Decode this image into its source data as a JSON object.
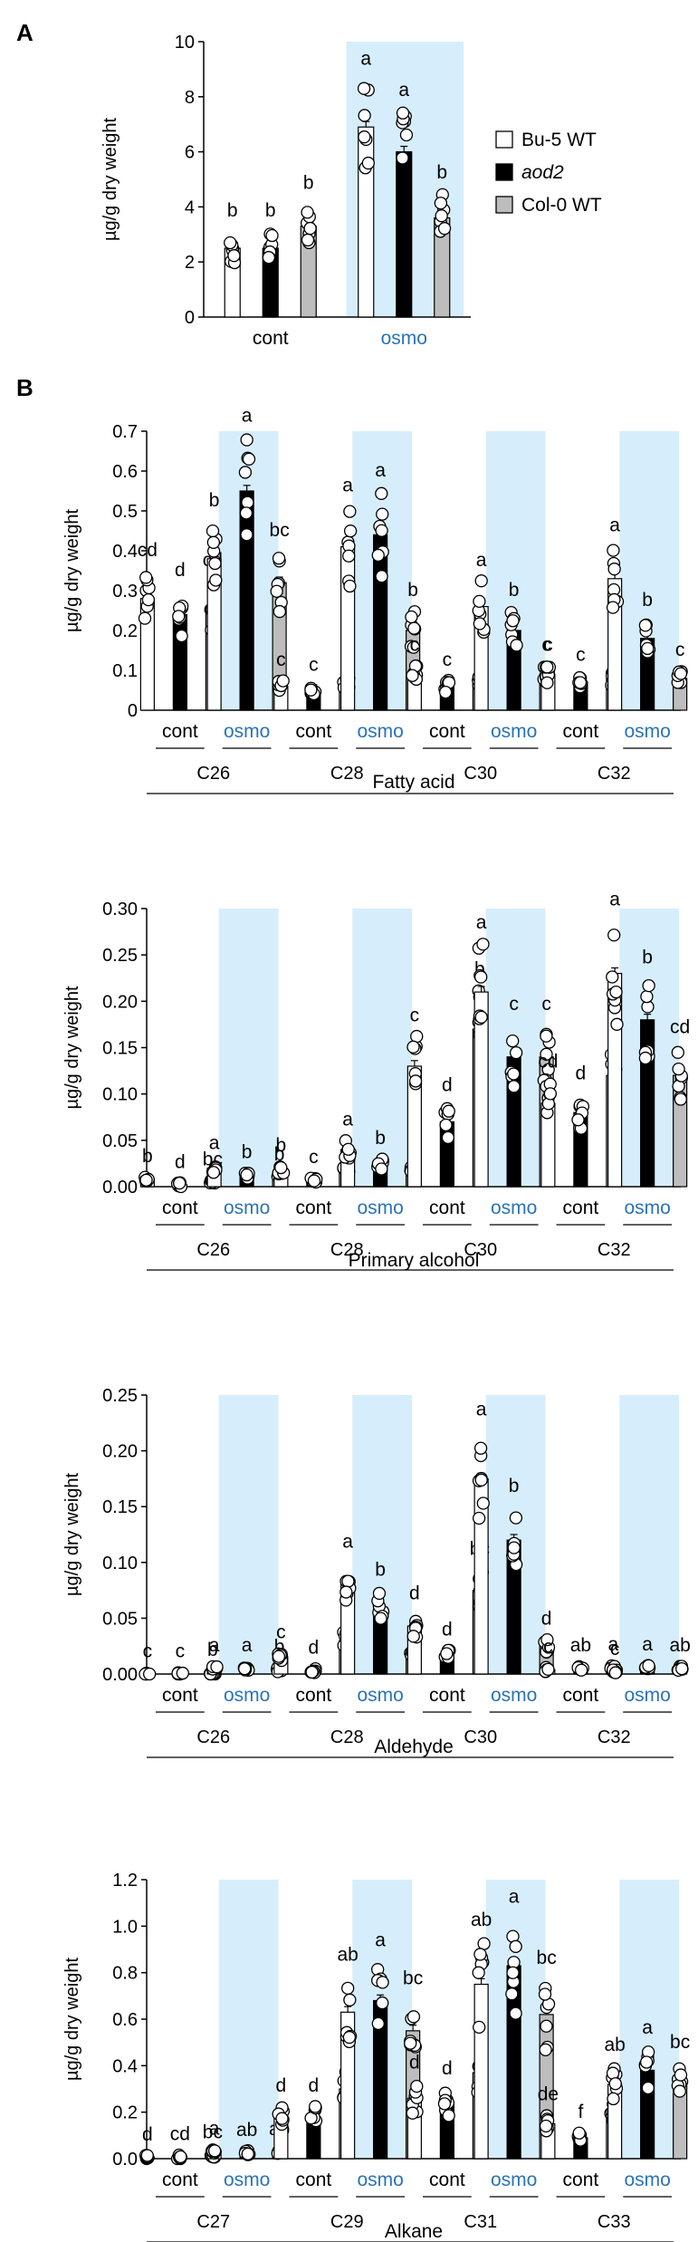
{
  "colors": {
    "bu5": "#ffffff",
    "aod2": "#000000",
    "col0": "#bdbdbd",
    "osmo_bg": "#d6eefb",
    "osmo_text": "#2a73b8"
  },
  "legend": [
    {
      "label": "Bu-5 WT",
      "italic": false,
      "color": "#ffffff"
    },
    {
      "label": "aod2",
      "italic": true,
      "color": "#000000"
    },
    {
      "label": "Col-0 WT",
      "italic": false,
      "color": "#bdbdbd"
    }
  ],
  "chart_data": [
    {
      "id": "A",
      "panel_label": "A",
      "type": "bar",
      "title": "",
      "ylabel": "µg/g dry weight",
      "ylim": [
        0,
        10
      ],
      "yticks": [
        "0",
        "2",
        "4",
        "6",
        "8",
        "10"
      ],
      "treatments": [
        "cont",
        "osmo"
      ],
      "series": [
        {
          "name": "Bu-5 WT",
          "values": [
            2.5,
            6.9
          ]
        },
        {
          "name": "aod2",
          "values": [
            2.5,
            6.0
          ]
        },
        {
          "name": "Col-0 WT",
          "values": [
            3.3,
            3.6
          ]
        }
      ],
      "letters": [
        [
          "b",
          "b",
          "b"
        ],
        [
          "a",
          "a",
          "b"
        ]
      ]
    },
    {
      "id": "B1",
      "panel_label": "B",
      "type": "bar",
      "title": "Fatty acid",
      "ylabel": "µg/g dry weight",
      "ylim": [
        0,
        0.7
      ],
      "yticks": [
        "0",
        "0.1",
        "0.2",
        "0.3",
        "0.4",
        "0.5",
        "0.6",
        "0.7"
      ],
      "chains": [
        "C26",
        "C28",
        "C30",
        "C32"
      ],
      "treatments": [
        "cont",
        "osmo"
      ],
      "series": [
        {
          "name": "Bu-5 WT",
          "values": [
            0.28,
            0.38,
            0.06,
            0.41,
            0.09,
            0.26,
            0.09,
            0.33
          ]
        },
        {
          "name": "aod2",
          "values": [
            0.24,
            0.55,
            0.05,
            0.44,
            0.06,
            0.2,
            0.07,
            0.18
          ]
        },
        {
          "name": "Col-0 WT",
          "values": [
            0.26,
            0.32,
            0.07,
            0.2,
            0.08,
            0.09,
            0.08,
            0.08
          ]
        }
      ],
      "letters": [
        [
          "cd",
          "d",
          "cd"
        ],
        [
          "b",
          "a",
          "bc"
        ],
        [
          "c",
          "c",
          "c"
        ],
        [
          "a",
          "a",
          "b"
        ],
        [
          "c",
          "c",
          "c"
        ],
        [
          "a",
          "b",
          "c"
        ],
        [
          "c",
          "c",
          "c"
        ],
        [
          "a",
          "b",
          "c"
        ]
      ]
    },
    {
      "id": "B2",
      "type": "bar",
      "title": "Primary alcohol",
      "ylabel": "µg/g dry weight",
      "ylim": [
        0,
        0.3
      ],
      "yticks": [
        "0.00",
        "0.05",
        "0.10",
        "0.15",
        "0.20",
        "0.25",
        "0.30"
      ],
      "chains": [
        "C26",
        "C28",
        "C30",
        "C32"
      ],
      "treatments": [
        "cont",
        "osmo"
      ],
      "series": [
        {
          "name": "Bu-5 WT",
          "values": [
            0.008,
            0.02,
            0.018,
            0.04,
            0.13,
            0.21,
            0.09,
            0.23
          ]
        },
        {
          "name": "aod2",
          "values": [
            0.002,
            0.012,
            0.007,
            0.024,
            0.07,
            0.14,
            0.08,
            0.18
          ]
        },
        {
          "name": "Col-0 WT",
          "values": [
            0.005,
            0.01,
            0.018,
            0.02,
            0.17,
            0.14,
            0.12,
            0.12
          ]
        }
      ],
      "letters": [
        [
          "b",
          "d",
          "bc"
        ],
        [
          "a",
          "b",
          "b"
        ],
        [
          "b",
          "c",
          "b"
        ],
        [
          "a",
          "b",
          "b"
        ],
        [
          "c",
          "d",
          "b"
        ],
        [
          "a",
          "c",
          "c"
        ],
        [
          "cd",
          "d",
          "c"
        ],
        [
          "a",
          "b",
          "cd"
        ]
      ]
    },
    {
      "id": "B3",
      "type": "bar",
      "title": "Aldehyde",
      "ylabel": "µg/g dry weight",
      "ylim": [
        0,
        0.25
      ],
      "yticks": [
        "0.00",
        "0.05",
        "0.10",
        "0.15",
        "0.20",
        "0.25"
      ],
      "chains": [
        "C26",
        "C28",
        "C30",
        "C32"
      ],
      "treatments": [
        "cont",
        "osmo"
      ],
      "series": [
        {
          "name": "Bu-5 WT",
          "values": [
            0.0,
            0.005,
            0.015,
            0.08,
            0.043,
            0.175,
            0.004,
            0.002
          ]
        },
        {
          "name": "aod2",
          "values": [
            0.0,
            0.005,
            0.003,
            0.06,
            0.017,
            0.12,
            0.005,
            0.006
          ]
        },
        {
          "name": "Col-0 WT",
          "values": [
            0.001,
            0.004,
            0.03,
            0.02,
            0.075,
            0.025,
            0.006,
            0.005
          ]
        }
      ],
      "letters": [
        [
          "c",
          "c",
          "b"
        ],
        [
          "a",
          "a",
          "b"
        ],
        [
          "c",
          "d",
          "c"
        ],
        [
          "a",
          "b",
          "c"
        ],
        [
          "d",
          "d",
          "bc"
        ],
        [
          "a",
          "b",
          "d"
        ],
        [
          "c",
          "ab",
          "a"
        ],
        [
          "c",
          "a",
          "ab"
        ]
      ]
    },
    {
      "id": "B4",
      "type": "bar",
      "title": "Alkane",
      "ylabel": "µg/g dry weight",
      "ylim": [
        0,
        1.2
      ],
      "yticks": [
        "0.0",
        "0.2",
        "0.4",
        "0.6",
        "0.8",
        "1.0",
        "1.2"
      ],
      "chains": [
        "C27",
        "C29",
        "C31",
        "C33"
      ],
      "treatments": [
        "cont",
        "osmo"
      ],
      "series": [
        {
          "name": "Bu-5 WT",
          "values": [
            0.005,
            0.03,
            0.18,
            0.63,
            0.26,
            0.75,
            0.15,
            0.32
          ]
        },
        {
          "name": "aod2",
          "values": [
            0.008,
            0.025,
            0.18,
            0.68,
            0.24,
            0.83,
            0.09,
            0.38
          ]
        },
        {
          "name": "Col-0 WT",
          "values": [
            0.015,
            0.028,
            0.3,
            0.55,
            0.37,
            0.62,
            0.2,
            0.33
          ]
        }
      ],
      "letters": [
        [
          "d",
          "cd",
          "bc"
        ],
        [
          "a",
          "ab",
          "ab"
        ],
        [
          "d",
          "d",
          "c"
        ],
        [
          "ab",
          "a",
          "bc"
        ],
        [
          "d",
          "d",
          "c"
        ],
        [
          "ab",
          "a",
          "bc"
        ],
        [
          "de",
          "f",
          "d"
        ],
        [
          "ab",
          "a",
          "bc"
        ]
      ]
    }
  ]
}
